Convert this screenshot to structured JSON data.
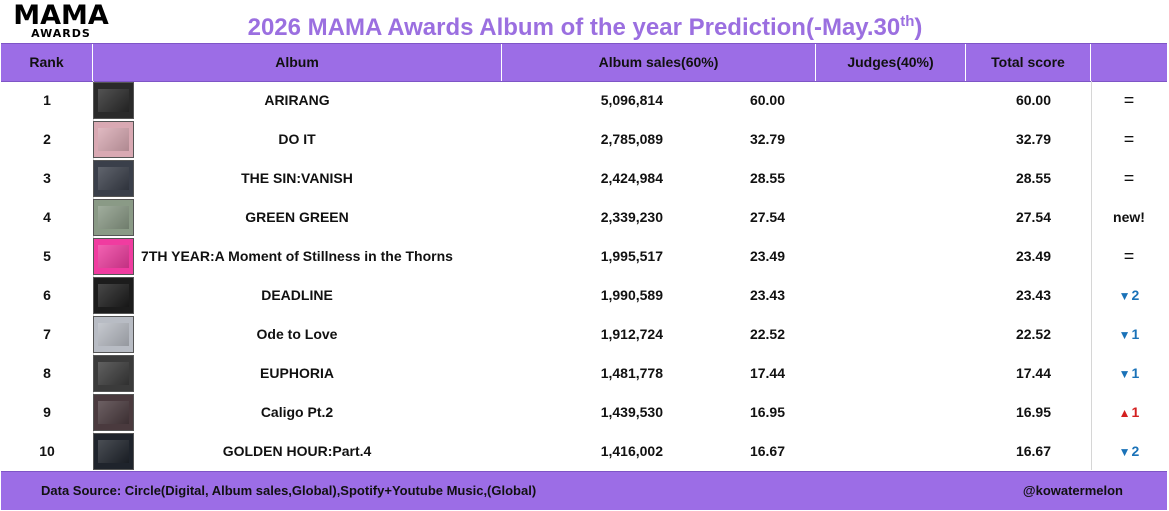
{
  "logo": {
    "main": "MAMA",
    "sub": "AWARDS"
  },
  "title": {
    "main": "2026 MAMA Awards Album of the year Prediction(-May.30",
    "sup": "th",
    "close": ")"
  },
  "header": {
    "rank": "Rank",
    "album": "Album",
    "sales": "Album sales(60%)",
    "judges": "Judges(40%)",
    "total": "Total score"
  },
  "rows": [
    {
      "rank": "1",
      "album": "ARIRANG",
      "sales": "5,096,814",
      "points": "60.00",
      "total": "60.00",
      "change": "=",
      "change_type": "same",
      "thumb_color": "#2a2a2a"
    },
    {
      "rank": "2",
      "album": "DO IT",
      "sales": "2,785,089",
      "points": "32.79",
      "total": "32.79",
      "change": "=",
      "change_type": "same",
      "thumb_color": "#d9a9b3"
    },
    {
      "rank": "3",
      "album": "THE SIN:VANISH",
      "sales": "2,424,984",
      "points": "28.55",
      "total": "28.55",
      "change": "=",
      "change_type": "same",
      "thumb_color": "#3a3f4a"
    },
    {
      "rank": "4",
      "album": "GREEN GREEN",
      "sales": "2,339,230",
      "points": "27.54",
      "total": "27.54",
      "change": "new!",
      "change_type": "new",
      "thumb_color": "#8a9a86"
    },
    {
      "rank": "5",
      "album": "7TH YEAR:A Moment of Stillness in the Thorns",
      "sales": "1,995,517",
      "points": "23.49",
      "total": "23.49",
      "change": "=",
      "change_type": "same",
      "thumb_color": "#f03ca0"
    },
    {
      "rank": "6",
      "album": "DEADLINE",
      "sales": "1,990,589",
      "points": "23.43",
      "total": "23.43",
      "change": "2",
      "change_type": "down",
      "thumb_color": "#1c1c1c"
    },
    {
      "rank": "7",
      "album": "Ode to Love",
      "sales": "1,912,724",
      "points": "22.52",
      "total": "22.52",
      "change": "1",
      "change_type": "down",
      "thumb_color": "#b8bcc4"
    },
    {
      "rank": "8",
      "album": "EUPHORIA",
      "sales": "1,481,778",
      "points": "17.44",
      "total": "17.44",
      "change": "1",
      "change_type": "down",
      "thumb_color": "#3b3b3b"
    },
    {
      "rank": "9",
      "album": "Caligo Pt.2",
      "sales": "1,439,530",
      "points": "16.95",
      "total": "16.95",
      "change": "1",
      "change_type": "up",
      "thumb_color": "#4a3a3e"
    },
    {
      "rank": "10",
      "album": "GOLDEN HOUR:Part.4",
      "sales": "1,416,002",
      "points": "16.67",
      "total": "16.67",
      "change": "2",
      "change_type": "down",
      "thumb_color": "#1f242c"
    }
  ],
  "footer": {
    "source": "Data Source: Circle(Digital, Album sales,Global),Spotify+Youtube Music,(Global)",
    "credit": "@kowatermelon"
  },
  "colors": {
    "accent": "#9c6de6",
    "title": "#9b6fe0",
    "down": "#1a72b8",
    "up": "#d42020"
  }
}
